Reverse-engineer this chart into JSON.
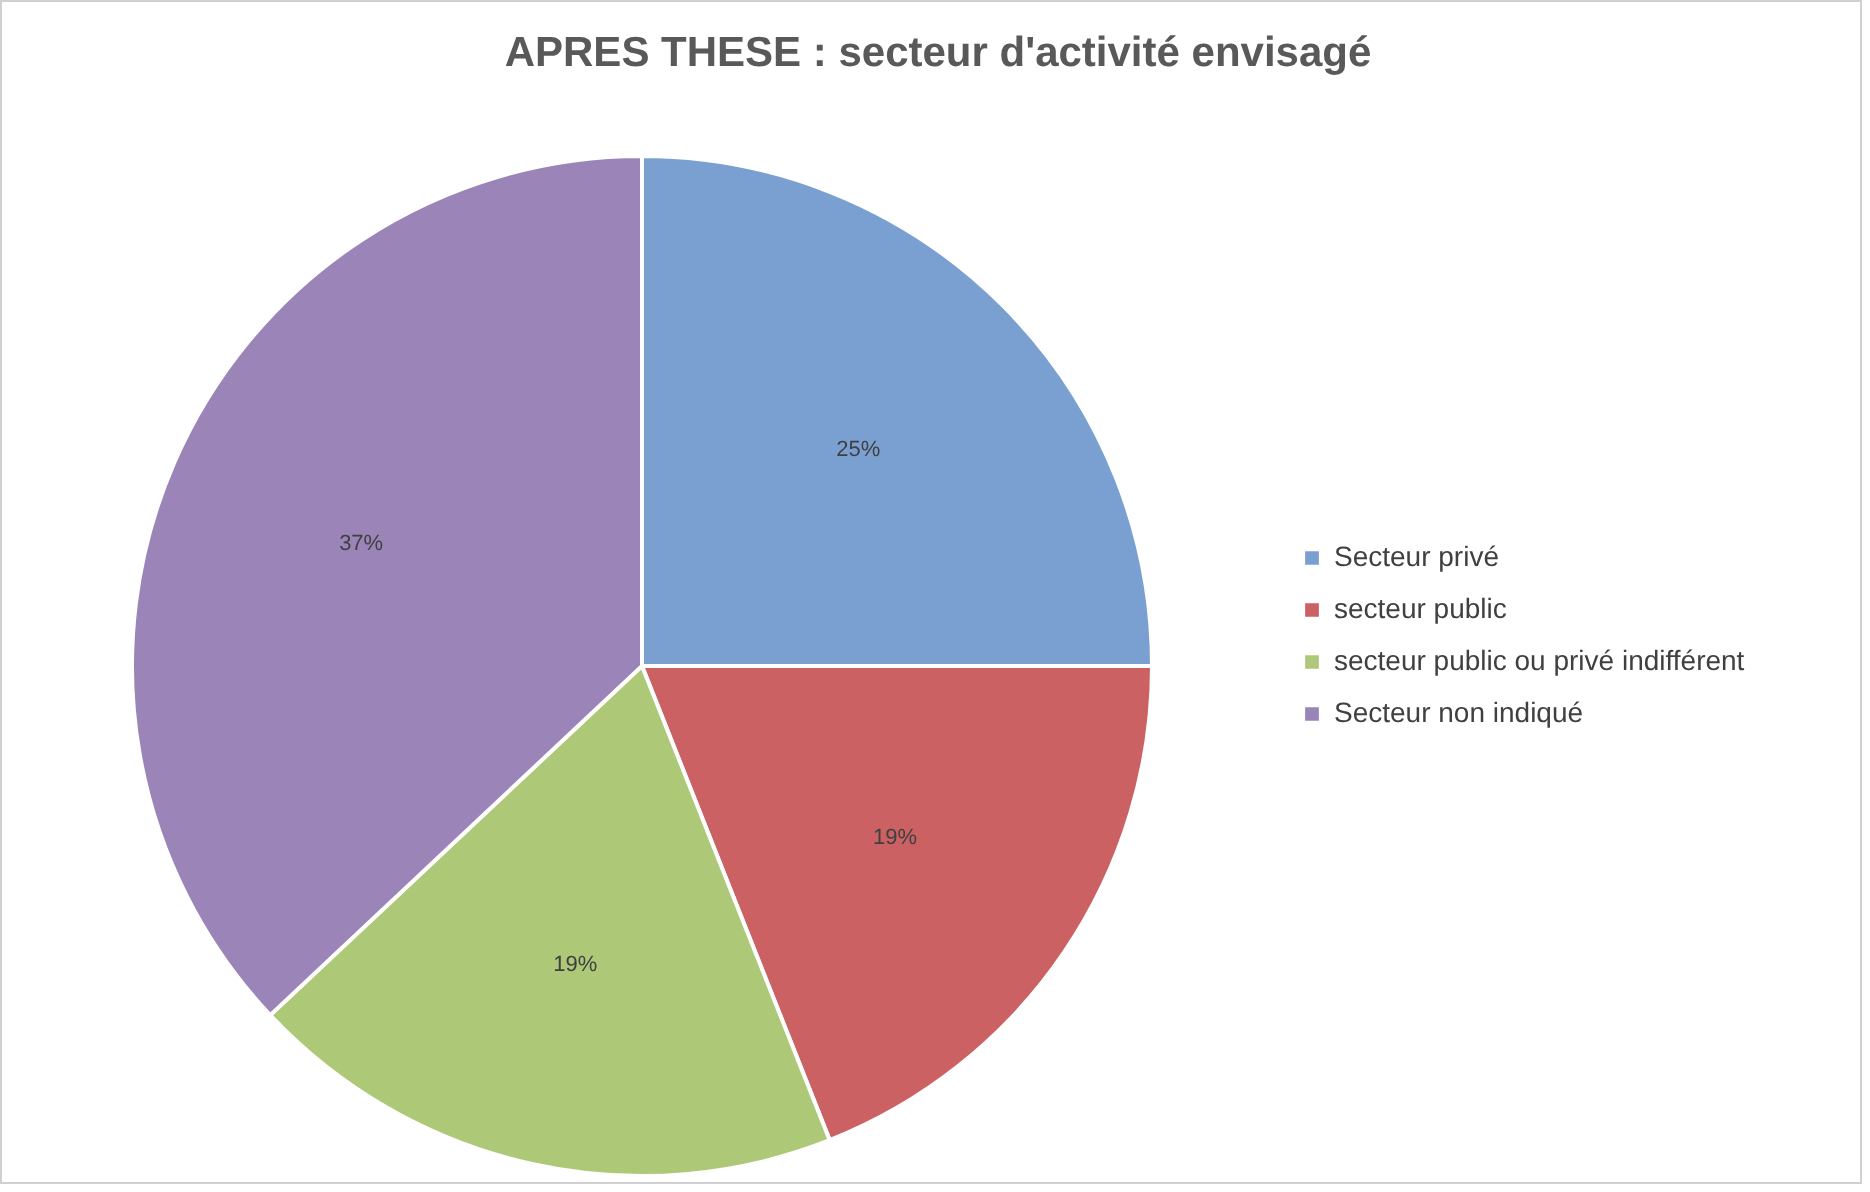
{
  "chart_data": {
    "type": "pie",
    "title": "APRES THESE : secteur d'activité envisagé",
    "categories": [
      "Secteur privé",
      "secteur public",
      "secteur public ou privé indifférent",
      "Secteur non indiqué"
    ],
    "values": [
      25,
      19,
      19,
      37
    ],
    "colors": [
      "#7aa0d2",
      "#cc6163",
      "#adc978",
      "#9b84b8"
    ],
    "value_labels": [
      "25%",
      "19%",
      "19%",
      "37%"
    ],
    "legend": "right"
  }
}
